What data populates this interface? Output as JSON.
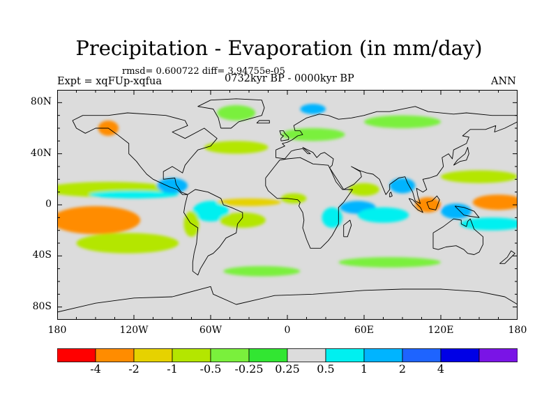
{
  "title": "Precipitation - Evaporation (in mm/day)",
  "stats_text": "rmsd= 0.600722 diff= 3.94755e-05",
  "experiment_text": "Expt = xqFUp-xqfua",
  "period_text": "0732kyr BP - 0000kyr BP",
  "season_text": "ANN",
  "map": {
    "projection": "cylindrical equidistant",
    "lon_range": [
      -180,
      180
    ],
    "lat_range": [
      -90,
      90
    ],
    "background_color": "#dcdcdc",
    "land_outline_color": "#000000",
    "x_ticks": [
      {
        "lon": -180,
        "label": "180"
      },
      {
        "lon": -120,
        "label": "120W"
      },
      {
        "lon": -60,
        "label": "60W"
      },
      {
        "lon": 0,
        "label": "0"
      },
      {
        "lon": 60,
        "label": "60E"
      },
      {
        "lon": 120,
        "label": "120E"
      },
      {
        "lon": 180,
        "label": "180"
      }
    ],
    "y_ticks": [
      {
        "lat": 80,
        "label": "80N"
      },
      {
        "lat": 40,
        "label": "40N"
      },
      {
        "lat": 0,
        "label": "0"
      },
      {
        "lat": -40,
        "label": "40S"
      },
      {
        "lat": -80,
        "label": "80S"
      }
    ]
  },
  "colorbar": {
    "colors": [
      "#ff0000",
      "#ff8c00",
      "#e6d200",
      "#b4e600",
      "#7af03c",
      "#32e632",
      "#dcdcdc",
      "#00f0f0",
      "#00b4ff",
      "#1e64ff",
      "#0000e6",
      "#7a14e6"
    ],
    "labels": [
      "-4",
      "-2",
      "-1",
      "-0.5",
      "-0.25",
      "0.25",
      "0.5",
      "1",
      "2",
      "4"
    ]
  },
  "chart_data": {
    "type": "heatmap",
    "variable": "Precipitation - Evaporation",
    "units": "mm/day",
    "levels": [
      -4,
      -2,
      -1,
      -0.5,
      -0.25,
      0.25,
      0.5,
      1,
      2,
      4
    ],
    "regions": [
      {
        "name": "equatorial east pacific",
        "lon": -150,
        "lat": -12,
        "rx": 35,
        "ry": 11,
        "value": -3
      },
      {
        "name": "north equatorial pacific band",
        "lon": -140,
        "lat": 12,
        "rx": 50,
        "ry": 6,
        "value": -0.7
      },
      {
        "name": "east pacific south band",
        "lon": -125,
        "lat": -30,
        "rx": 40,
        "ry": 8,
        "value": -0.7
      },
      {
        "name": "east pacific ITCZ",
        "lon": -120,
        "lat": 8,
        "rx": 35,
        "ry": 3,
        "value": 0.6
      },
      {
        "name": "central america",
        "lon": -90,
        "lat": 15,
        "rx": 12,
        "ry": 6,
        "value": 1.5
      },
      {
        "name": "amazon",
        "lon": -60,
        "lat": -5,
        "rx": 14,
        "ry": 8,
        "value": 0.7
      },
      {
        "name": "south america west",
        "lon": -75,
        "lat": -15,
        "rx": 6,
        "ry": 10,
        "value": -0.7
      },
      {
        "name": "south atlantic band",
        "lon": -35,
        "lat": -12,
        "rx": 18,
        "ry": 6,
        "value": -0.7
      },
      {
        "name": "equatorial atlantic",
        "lon": -30,
        "lat": 2,
        "rx": 25,
        "ry": 3,
        "value": -1.5
      },
      {
        "name": "guinea coast",
        "lon": 5,
        "lat": 5,
        "rx": 10,
        "ry": 4,
        "value": -0.7
      },
      {
        "name": "west indian ocean",
        "lon": 55,
        "lat": -2,
        "rx": 14,
        "ry": 5,
        "value": 1.5
      },
      {
        "name": "arabian sea",
        "lon": 60,
        "lat": 12,
        "rx": 12,
        "ry": 5,
        "value": -0.6
      },
      {
        "name": "indian ocean south",
        "lon": 75,
        "lat": -8,
        "rx": 20,
        "ry": 6,
        "value": 0.6
      },
      {
        "name": "bay of bengal",
        "lon": 90,
        "lat": 15,
        "rx": 10,
        "ry": 6,
        "value": 1.5
      },
      {
        "name": "maritime continent west",
        "lon": 110,
        "lat": 0,
        "rx": 10,
        "ry": 6,
        "value": -3
      },
      {
        "name": "maritime continent east",
        "lon": 132,
        "lat": -5,
        "rx": 12,
        "ry": 6,
        "value": 1.5
      },
      {
        "name": "western pacific",
        "lon": 165,
        "lat": 2,
        "rx": 20,
        "ry": 6,
        "value": -3
      },
      {
        "name": "south pacific convergence",
        "lon": 160,
        "lat": -15,
        "rx": 25,
        "ry": 5,
        "value": 0.6
      },
      {
        "name": "northwest pacific",
        "lon": 150,
        "lat": 22,
        "rx": 30,
        "ry": 5,
        "value": -0.7
      },
      {
        "name": "north pacific",
        "lon": 170,
        "lat": 38,
        "rx": 25,
        "ry": 5,
        "value": 0.4
      },
      {
        "name": "north atlantic",
        "lon": -40,
        "lat": 45,
        "rx": 25,
        "ry": 5,
        "value": -0.6
      },
      {
        "name": "subtropical north atlantic",
        "lon": -50,
        "lat": 25,
        "rx": 25,
        "ry": 5,
        "value": 0.4
      },
      {
        "name": "europe",
        "lon": 20,
        "lat": 55,
        "rx": 25,
        "ry": 5,
        "value": -0.5
      },
      {
        "name": "siberia",
        "lon": 90,
        "lat": 65,
        "rx": 30,
        "ry": 5,
        "value": -0.5
      },
      {
        "name": "arctic scandinavia",
        "lon": 20,
        "lat": 75,
        "rx": 10,
        "ry": 4,
        "value": 1.5
      },
      {
        "name": "alaska coast",
        "lon": -140,
        "lat": 60,
        "rx": 8,
        "ry": 6,
        "value": -3
      },
      {
        "name": "greenland",
        "lon": -40,
        "lat": 72,
        "rx": 15,
        "ry": 6,
        "value": -0.5
      },
      {
        "name": "southern ocean atlantic",
        "lon": -20,
        "lat": -52,
        "rx": 30,
        "ry": 4,
        "value": -0.5
      },
      {
        "name": "southern ocean indian",
        "lon": 80,
        "lat": -45,
        "rx": 40,
        "ry": 4,
        "value": -0.5
      },
      {
        "name": "east africa",
        "lon": 35,
        "lat": -10,
        "rx": 8,
        "ry": 8,
        "value": 0.6
      }
    ]
  }
}
